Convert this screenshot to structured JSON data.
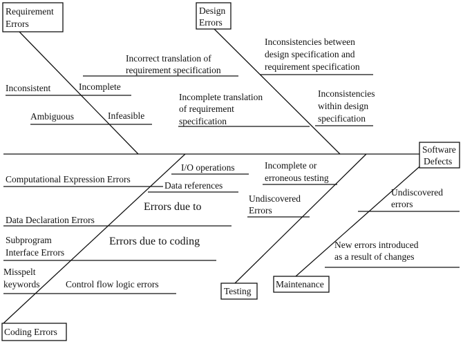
{
  "categories": {
    "requirement": {
      "line1": "Requirement",
      "line2": "Errors"
    },
    "design": {
      "line1": "Design",
      "line2": "Errors"
    },
    "effect": {
      "line1": "Software",
      "line2": "Defects"
    },
    "testing": {
      "label": "Testing"
    },
    "maintenance": {
      "label": "Maintenance"
    },
    "coding": {
      "label": "Coding Errors"
    }
  },
  "requirement_causes": {
    "incorrect_translation": {
      "line1": "Incorrect translation of",
      "line2": "requirement specification"
    },
    "inconsistent": "Inconsistent",
    "incomplete": "Incomplete",
    "ambiguous": "Ambiguous",
    "infeasible": "Infeasible"
  },
  "design_causes": {
    "inconsistencies_between": {
      "line1": "Inconsistencies between",
      "line2": "design specification and",
      "line3": "requirement specification"
    },
    "incomplete_translation": {
      "line1": "Incomplete translation",
      "line2": "of requirement",
      "line3": "specification"
    },
    "inconsistencies_within": {
      "line1": "Inconsistencies",
      "line2": "within design",
      "line3": "specification"
    }
  },
  "coding_causes": {
    "io_operations": "I/O operations",
    "computational": "Computational Expression Errors",
    "data_references": "Data references",
    "errors_due_to": "Errors due to",
    "data_declaration": "Data Declaration Errors",
    "subprogram": {
      "line1": "Subprogram",
      "line2": "Interface Errors"
    },
    "errors_due_to_coding": "Errors due to coding",
    "misspelt": {
      "line1": "Misspelt",
      "line2": "keywords"
    },
    "control_flow": "Control flow logic errors"
  },
  "testing_causes": {
    "incomplete_testing": {
      "line1": "Incomplete or",
      "line2": "erroneous testing"
    },
    "undiscovered": {
      "line1": "Undiscovered",
      "line2": "Errors"
    }
  },
  "maintenance_causes": {
    "undiscovered": {
      "line1": "Undiscovered",
      "line2": "errors"
    },
    "new_errors": {
      "line1": "New errors introduced",
      "line2": "as a result of changes"
    }
  }
}
